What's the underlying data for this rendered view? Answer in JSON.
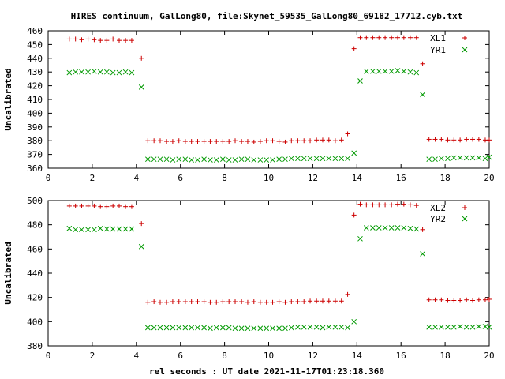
{
  "title": "HIRES continuum, GalLong80, file:Skynet_59535_GalLong80_69182_17712.cyb.txt",
  "xlabel": "rel seconds : UT date 2021-11-17T01:23:18.360",
  "colors": {
    "red": "#cc0000",
    "green": "#009900"
  },
  "chart_data": [
    {
      "type": "scatter",
      "ylabel": "Uncalibrated",
      "xlim": [
        0,
        20
      ],
      "ylim": [
        360,
        460
      ],
      "xticks": [
        0,
        2,
        4,
        6,
        8,
        10,
        12,
        14,
        16,
        18,
        20
      ],
      "yticks": [
        360,
        370,
        380,
        390,
        400,
        410,
        420,
        430,
        440,
        450,
        460
      ],
      "legend_position": "top-right",
      "grid": false,
      "series": [
        {
          "name": "XL1",
          "marker": "plus",
          "color": "#cc0000",
          "x": [
            0.96,
            1.24,
            1.52,
            1.81,
            2.09,
            2.37,
            2.66,
            2.94,
            3.22,
            3.51,
            3.79,
            4.23,
            4.52,
            4.8,
            5.08,
            5.37,
            5.65,
            5.93,
            6.22,
            6.5,
            6.78,
            7.07,
            7.35,
            7.63,
            7.92,
            8.2,
            8.48,
            8.77,
            9.05,
            9.33,
            9.62,
            9.9,
            10.18,
            10.47,
            10.75,
            11.03,
            11.32,
            11.6,
            11.88,
            12.17,
            12.45,
            12.73,
            13.02,
            13.3,
            13.58,
            13.87,
            14.15,
            14.43,
            14.72,
            15.0,
            15.28,
            15.57,
            15.85,
            16.13,
            16.42,
            16.7,
            16.98,
            17.27,
            17.55,
            17.83,
            18.12,
            18.4,
            18.68,
            18.97,
            19.25,
            19.53,
            19.82,
            20.0
          ],
          "y": [
            454,
            454,
            453.5,
            454,
            453.5,
            453,
            453,
            454,
            453,
            453,
            453,
            440,
            380,
            380,
            380,
            379.5,
            379.5,
            380,
            379.5,
            379.5,
            379.5,
            379.5,
            379.5,
            379.5,
            379.5,
            379.5,
            380,
            379.5,
            379.5,
            379,
            379.5,
            380,
            380,
            379.5,
            379,
            380,
            380,
            380,
            380,
            380.5,
            380.5,
            380.5,
            380,
            380.5,
            385,
            447,
            455,
            455,
            455,
            455,
            455,
            455,
            455,
            455,
            455,
            455,
            436,
            381,
            381,
            381,
            380.5,
            380.5,
            380.5,
            381,
            381,
            381,
            380.5,
            380.5
          ]
        },
        {
          "name": "YR1",
          "marker": "cross",
          "color": "#009900",
          "x": [
            0.96,
            1.24,
            1.52,
            1.81,
            2.09,
            2.37,
            2.66,
            2.94,
            3.22,
            3.51,
            3.79,
            4.23,
            4.52,
            4.8,
            5.08,
            5.37,
            5.65,
            5.93,
            6.22,
            6.5,
            6.78,
            7.07,
            7.35,
            7.63,
            7.92,
            8.2,
            8.48,
            8.77,
            9.05,
            9.33,
            9.62,
            9.9,
            10.18,
            10.47,
            10.75,
            11.03,
            11.32,
            11.6,
            11.88,
            12.17,
            12.45,
            12.73,
            13.02,
            13.3,
            13.58,
            13.87,
            14.15,
            14.43,
            14.72,
            15.0,
            15.28,
            15.57,
            15.85,
            16.13,
            16.42,
            16.7,
            16.98,
            17.27,
            17.55,
            17.83,
            18.12,
            18.4,
            18.68,
            18.97,
            19.25,
            19.53,
            19.82,
            20.0
          ],
          "y": [
            429.5,
            430,
            430,
            430,
            430.5,
            430,
            430,
            429.5,
            429.5,
            430,
            429.5,
            419,
            366.5,
            366.5,
            366.5,
            366.5,
            366,
            366.5,
            366.5,
            366,
            366,
            366.5,
            366,
            366,
            366.5,
            366,
            366,
            366.5,
            366.5,
            366,
            366,
            366,
            366,
            366.5,
            366.5,
            367,
            367,
            367,
            367,
            367,
            367,
            367,
            367,
            367,
            367,
            371,
            423.5,
            430.5,
            430.5,
            430.5,
            430.5,
            430.5,
            431,
            430.5,
            430,
            429.5,
            413.5,
            366.5,
            366.5,
            367,
            367,
            367.5,
            367.5,
            367.5,
            367.5,
            367.5,
            367,
            368
          ]
        }
      ]
    },
    {
      "type": "scatter",
      "ylabel": "Uncalibrated",
      "xlim": [
        0,
        20
      ],
      "ylim": [
        380,
        500
      ],
      "xticks": [
        0,
        2,
        4,
        6,
        8,
        10,
        12,
        14,
        16,
        18,
        20
      ],
      "yticks": [
        380,
        400,
        420,
        440,
        460,
        480,
        500
      ],
      "legend_position": "top-right",
      "grid": false,
      "series": [
        {
          "name": "XL2",
          "marker": "plus",
          "color": "#cc0000",
          "x": [
            0.96,
            1.24,
            1.52,
            1.81,
            2.09,
            2.37,
            2.66,
            2.94,
            3.22,
            3.51,
            3.79,
            4.23,
            4.52,
            4.8,
            5.08,
            5.37,
            5.65,
            5.93,
            6.22,
            6.5,
            6.78,
            7.07,
            7.35,
            7.63,
            7.92,
            8.2,
            8.48,
            8.77,
            9.05,
            9.33,
            9.62,
            9.9,
            10.18,
            10.47,
            10.75,
            11.03,
            11.32,
            11.6,
            11.88,
            12.17,
            12.45,
            12.73,
            13.02,
            13.3,
            13.58,
            13.87,
            14.15,
            14.43,
            14.72,
            15.0,
            15.28,
            15.57,
            15.85,
            16.13,
            16.42,
            16.7,
            16.98,
            17.27,
            17.55,
            17.83,
            18.12,
            18.4,
            18.68,
            18.97,
            19.25,
            19.53,
            19.82,
            20.0
          ],
          "y": [
            495.5,
            495.5,
            495.5,
            495.5,
            495.5,
            495,
            495,
            495.5,
            495.5,
            495,
            495,
            481,
            416,
            416.5,
            416,
            416,
            416.5,
            416.5,
            416.5,
            416.5,
            416.5,
            416.5,
            416,
            416,
            416.5,
            416.5,
            416.5,
            416.5,
            416,
            416.5,
            416,
            416,
            416,
            416.5,
            416,
            416.5,
            416.5,
            416.5,
            417,
            417,
            417,
            417,
            417,
            417,
            422.5,
            488,
            497,
            496.5,
            496.5,
            496.5,
            496.5,
            496.5,
            497,
            497,
            496.5,
            496,
            476,
            418,
            418,
            418,
            417.5,
            417.5,
            417.5,
            418,
            417.5,
            418,
            418,
            418.5
          ]
        },
        {
          "name": "YR2",
          "marker": "cross",
          "color": "#009900",
          "x": [
            0.96,
            1.24,
            1.52,
            1.81,
            2.09,
            2.37,
            2.66,
            2.94,
            3.22,
            3.51,
            3.79,
            4.23,
            4.52,
            4.8,
            5.08,
            5.37,
            5.65,
            5.93,
            6.22,
            6.5,
            6.78,
            7.07,
            7.35,
            7.63,
            7.92,
            8.2,
            8.48,
            8.77,
            9.05,
            9.33,
            9.62,
            9.9,
            10.18,
            10.47,
            10.75,
            11.03,
            11.32,
            11.6,
            11.88,
            12.17,
            12.45,
            12.73,
            13.02,
            13.3,
            13.58,
            13.87,
            14.15,
            14.43,
            14.72,
            15.0,
            15.28,
            15.57,
            15.85,
            16.13,
            16.42,
            16.7,
            16.98,
            17.27,
            17.55,
            17.83,
            18.12,
            18.4,
            18.68,
            18.97,
            19.25,
            19.53,
            19.82,
            20.0
          ],
          "y": [
            477,
            476,
            476,
            476,
            476,
            477,
            476.5,
            476.5,
            476.5,
            476.5,
            476.5,
            462,
            395,
            395,
            395,
            395,
            395,
            395,
            395,
            395,
            395,
            395,
            394.5,
            395,
            395,
            395,
            394.5,
            394.5,
            394.5,
            394.5,
            394.5,
            394.5,
            394.5,
            394.5,
            394.5,
            395,
            395.5,
            395.5,
            395.5,
            395.5,
            395,
            395.5,
            395.5,
            395.5,
            395,
            400,
            468.5,
            477.5,
            477.5,
            477.5,
            477.5,
            477.5,
            477.5,
            477.5,
            477,
            476.5,
            456,
            395.5,
            395.5,
            395.5,
            395.5,
            395.5,
            396,
            395.5,
            395.5,
            396,
            396,
            395.5
          ]
        }
      ]
    }
  ]
}
